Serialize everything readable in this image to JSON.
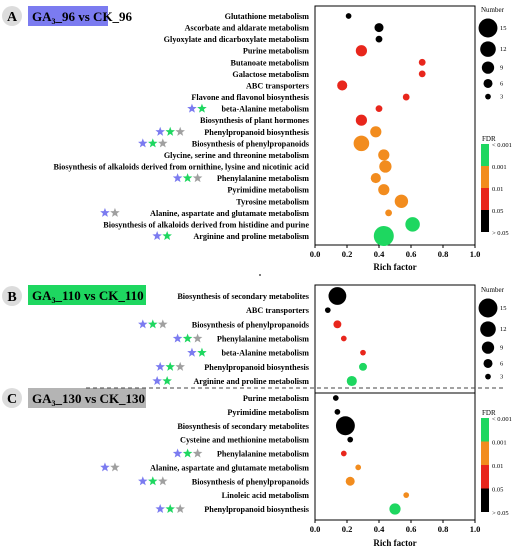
{
  "chart_data": [
    {
      "type": "scatter",
      "panel_label": "A",
      "title": "GA3_96 vs CK_96",
      "title_main": "GA",
      "title_sub": "3",
      "title_rest": "_96 vs CK_96",
      "title_bg": "#7b7bf0",
      "xlabel": "Rich factor",
      "xlim": [
        0.0,
        1.0
      ],
      "x_ticks": [
        "0.0",
        "0.2",
        "0.4",
        "0.6",
        "0.8",
        "1.0"
      ],
      "points": [
        {
          "pathway": "Glutathione metabolism",
          "x": 0.21,
          "size": 3,
          "fdr_color": "#000000",
          "stars": []
        },
        {
          "pathway": "Ascorbate and aldarate metabolism",
          "x": 0.4,
          "size": 6,
          "fdr_color": "#000000",
          "stars": []
        },
        {
          "pathway": "Glyoxylate and dicarboxylate metabolism",
          "x": 0.4,
          "size": 4,
          "fdr_color": "#000000",
          "stars": []
        },
        {
          "pathway": "Purine metabolism",
          "x": 0.29,
          "size": 8,
          "fdr_color": "#e8261c",
          "stars": []
        },
        {
          "pathway": "Butanoate metabolism",
          "x": 0.67,
          "size": 4,
          "fdr_color": "#e8261c",
          "stars": []
        },
        {
          "pathway": "Galactose metabolism",
          "x": 0.67,
          "size": 4,
          "fdr_color": "#e8261c",
          "stars": []
        },
        {
          "pathway": "ABC transporters",
          "x": 0.17,
          "size": 7,
          "fdr_color": "#e8261c",
          "stars": []
        },
        {
          "pathway": "Flavone and flavonol biosynthesis",
          "x": 0.57,
          "size": 4,
          "fdr_color": "#e8261c",
          "stars": []
        },
        {
          "pathway": "beta-Alanine metabolism",
          "x": 0.4,
          "size": 4,
          "fdr_color": "#e8261c",
          "stars": [
            "#7b7bf0",
            "#1ed760"
          ]
        },
        {
          "pathway": "Biosynthesis of plant hormones",
          "x": 0.29,
          "size": 8,
          "fdr_color": "#e8261c",
          "stars": []
        },
        {
          "pathway": "Phenylpropanoid biosynthesis",
          "x": 0.38,
          "size": 8,
          "fdr_color": "#f28c1e",
          "stars": [
            "#7b7bf0",
            "#1ed760",
            "#a0a0a0"
          ]
        },
        {
          "pathway": "Biosynthesis of phenylpropanoids",
          "x": 0.29,
          "size": 12,
          "fdr_color": "#f28c1e",
          "stars": [
            "#7b7bf0",
            "#1ed760",
            "#a0a0a0"
          ]
        },
        {
          "pathway": "Glycine, serine and threonine metabolism",
          "x": 0.43,
          "size": 8,
          "fdr_color": "#f28c1e",
          "stars": []
        },
        {
          "pathway": "Biosynthesis of alkaloids derived from ornithine, lysine and nicotinic acid",
          "x": 0.44,
          "size": 9,
          "fdr_color": "#f28c1e",
          "stars": []
        },
        {
          "pathway": "Phenylalanine metabolism",
          "x": 0.38,
          "size": 7,
          "fdr_color": "#f28c1e",
          "stars": [
            "#7b7bf0",
            "#1ed760",
            "#a0a0a0"
          ]
        },
        {
          "pathway": "Pyrimidine metabolism",
          "x": 0.43,
          "size": 8,
          "fdr_color": "#f28c1e",
          "stars": []
        },
        {
          "pathway": "Tyrosine metabolism",
          "x": 0.54,
          "size": 10,
          "fdr_color": "#f28c1e",
          "stars": []
        },
        {
          "pathway": "Alanine, aspartate and glutamate metabolism",
          "x": 0.46,
          "size": 4,
          "fdr_color": "#f28c1e",
          "stars": [
            "#7b7bf0",
            "#a0a0a0"
          ]
        },
        {
          "pathway": "Biosynthesis of alkaloids derived from histidine and purine",
          "x": 0.61,
          "size": 11,
          "fdr_color": "#1ed760",
          "stars": []
        },
        {
          "pathway": "Arginine and proline metabolism",
          "x": 0.43,
          "size": 16,
          "fdr_color": "#1ed760",
          "stars": [
            "#7b7bf0",
            "#1ed760"
          ]
        }
      ]
    },
    {
      "type": "scatter",
      "panel_label": "B",
      "title": "GA3_110 vs CK_110",
      "title_main": "GA",
      "title_sub": "3",
      "title_rest": "_110 vs CK_110",
      "title_bg": "#1ed760",
      "xlabel": "",
      "xlim": [
        0.0,
        1.0
      ],
      "points": [
        {
          "pathway": "Biosynthesis of secondary metabolites",
          "x": 0.14,
          "size": 14,
          "fdr_color": "#000000",
          "stars": []
        },
        {
          "pathway": "ABC transporters",
          "x": 0.08,
          "size": 3,
          "fdr_color": "#000000",
          "stars": []
        },
        {
          "pathway": "Biosynthesis of phenylpropanoids",
          "x": 0.14,
          "size": 5,
          "fdr_color": "#e8261c",
          "stars": [
            "#7b7bf0",
            "#1ed760",
            "#a0a0a0"
          ]
        },
        {
          "pathway": "Phenylalanine metabolism",
          "x": 0.18,
          "size": 3,
          "fdr_color": "#e8261c",
          "stars": [
            "#7b7bf0",
            "#1ed760",
            "#a0a0a0"
          ]
        },
        {
          "pathway": "beta-Alanine metabolism",
          "x": 0.3,
          "size": 3,
          "fdr_color": "#e8261c",
          "stars": [
            "#7b7bf0",
            "#1ed760"
          ]
        },
        {
          "pathway": "Phenylpropanoid biosynthesis",
          "x": 0.3,
          "size": 5,
          "fdr_color": "#1ed760",
          "stars": [
            "#7b7bf0",
            "#1ed760",
            "#a0a0a0"
          ]
        },
        {
          "pathway": "Arginine and proline metabolism",
          "x": 0.23,
          "size": 7,
          "fdr_color": "#1ed760",
          "stars": [
            "#7b7bf0",
            "#1ed760"
          ]
        }
      ]
    },
    {
      "type": "scatter",
      "panel_label": "C",
      "title": "GA3_130 vs CK_130",
      "title_main": "GA",
      "title_sub": "3",
      "title_rest": "_130 vs CK_130",
      "title_bg": "#b4b4b4",
      "xlabel": "Rich factor",
      "xlim": [
        0.0,
        1.0
      ],
      "x_ticks": [
        "0.0",
        "0.2",
        "0.4",
        "0.6",
        "0.8",
        "1.0"
      ],
      "points": [
        {
          "pathway": "Purine metabolism",
          "x": 0.13,
          "size": 3,
          "fdr_color": "#000000",
          "stars": []
        },
        {
          "pathway": "Pyrimidine metabolism",
          "x": 0.14,
          "size": 3,
          "fdr_color": "#000000",
          "stars": []
        },
        {
          "pathway": "Biosynthesis of secondary metabolites",
          "x": 0.19,
          "size": 15,
          "fdr_color": "#000000",
          "stars": []
        },
        {
          "pathway": "Cysteine and methionine metabolism",
          "x": 0.22,
          "size": 3,
          "fdr_color": "#000000",
          "stars": []
        },
        {
          "pathway": "Phenylalanine metabolism",
          "x": 0.18,
          "size": 3,
          "fdr_color": "#e8261c",
          "stars": [
            "#7b7bf0",
            "#1ed760",
            "#a0a0a0"
          ]
        },
        {
          "pathway": "Alanine, aspartate and glutamate metabolism",
          "x": 0.27,
          "size": 3,
          "fdr_color": "#f28c1e",
          "stars": [
            "#7b7bf0",
            "#a0a0a0"
          ]
        },
        {
          "pathway": "Biosynthesis of phenylpropanoids",
          "x": 0.22,
          "size": 6,
          "fdr_color": "#f28c1e",
          "stars": [
            "#7b7bf0",
            "#1ed760",
            "#a0a0a0"
          ]
        },
        {
          "pathway": "Linoleic acid metabolism",
          "x": 0.57,
          "size": 3,
          "fdr_color": "#f28c1e",
          "stars": []
        },
        {
          "pathway": "Phenylpropanoid biosynthesis",
          "x": 0.5,
          "size": 8,
          "fdr_color": "#1ed760",
          "stars": [
            "#7b7bf0",
            "#1ed760",
            "#a0a0a0"
          ]
        }
      ]
    }
  ],
  "legend_number": {
    "title": "Number",
    "values": [
      15,
      12,
      9,
      6,
      3
    ],
    "labels": [
      "15",
      "12",
      "9",
      "6",
      "3"
    ]
  },
  "legend_fdr": {
    "title": "FDR",
    "labels": [
      "< 0.001",
      "0.001",
      "0.01",
      "0.05",
      "> 0.05"
    ],
    "colors": [
      "#1ed760",
      "#f28c1e",
      "#e8261c",
      "#000000"
    ]
  }
}
